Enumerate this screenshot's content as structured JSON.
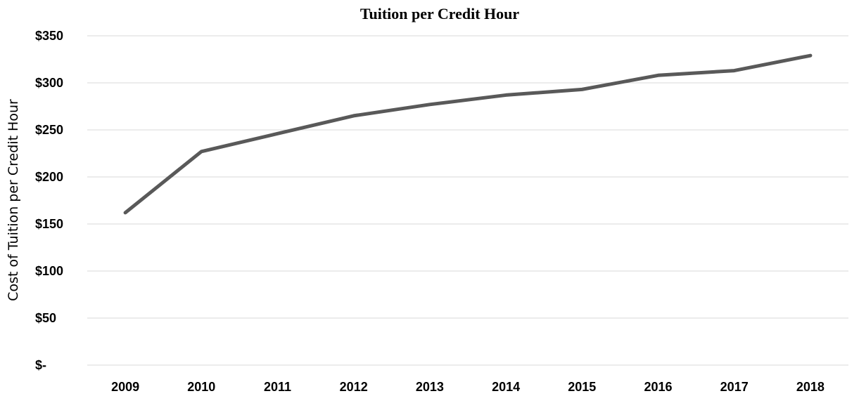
{
  "chart_data": {
    "type": "line",
    "title": "Tuition per Credit Hour",
    "xlabel": "",
    "ylabel": "Cost of Tuition per Credit Hour",
    "categories": [
      "2009",
      "2010",
      "2011",
      "2012",
      "2013",
      "2014",
      "2015",
      "2016",
      "2017",
      "2018"
    ],
    "series": [
      {
        "values": [
          162,
          227,
          246,
          265,
          277,
          287,
          293,
          308,
          313,
          329
        ],
        "color": "#595959"
      }
    ],
    "ylim": [
      0,
      350
    ],
    "yticks": [
      0,
      50,
      100,
      150,
      200,
      250,
      300,
      350
    ],
    "ytick_labels": [
      "$-",
      "$50",
      "$100",
      "$150",
      "$200",
      "$250",
      "$300",
      "$350"
    ],
    "grid": true,
    "legend": "none",
    "gridline_color": "#d9d9d9"
  }
}
